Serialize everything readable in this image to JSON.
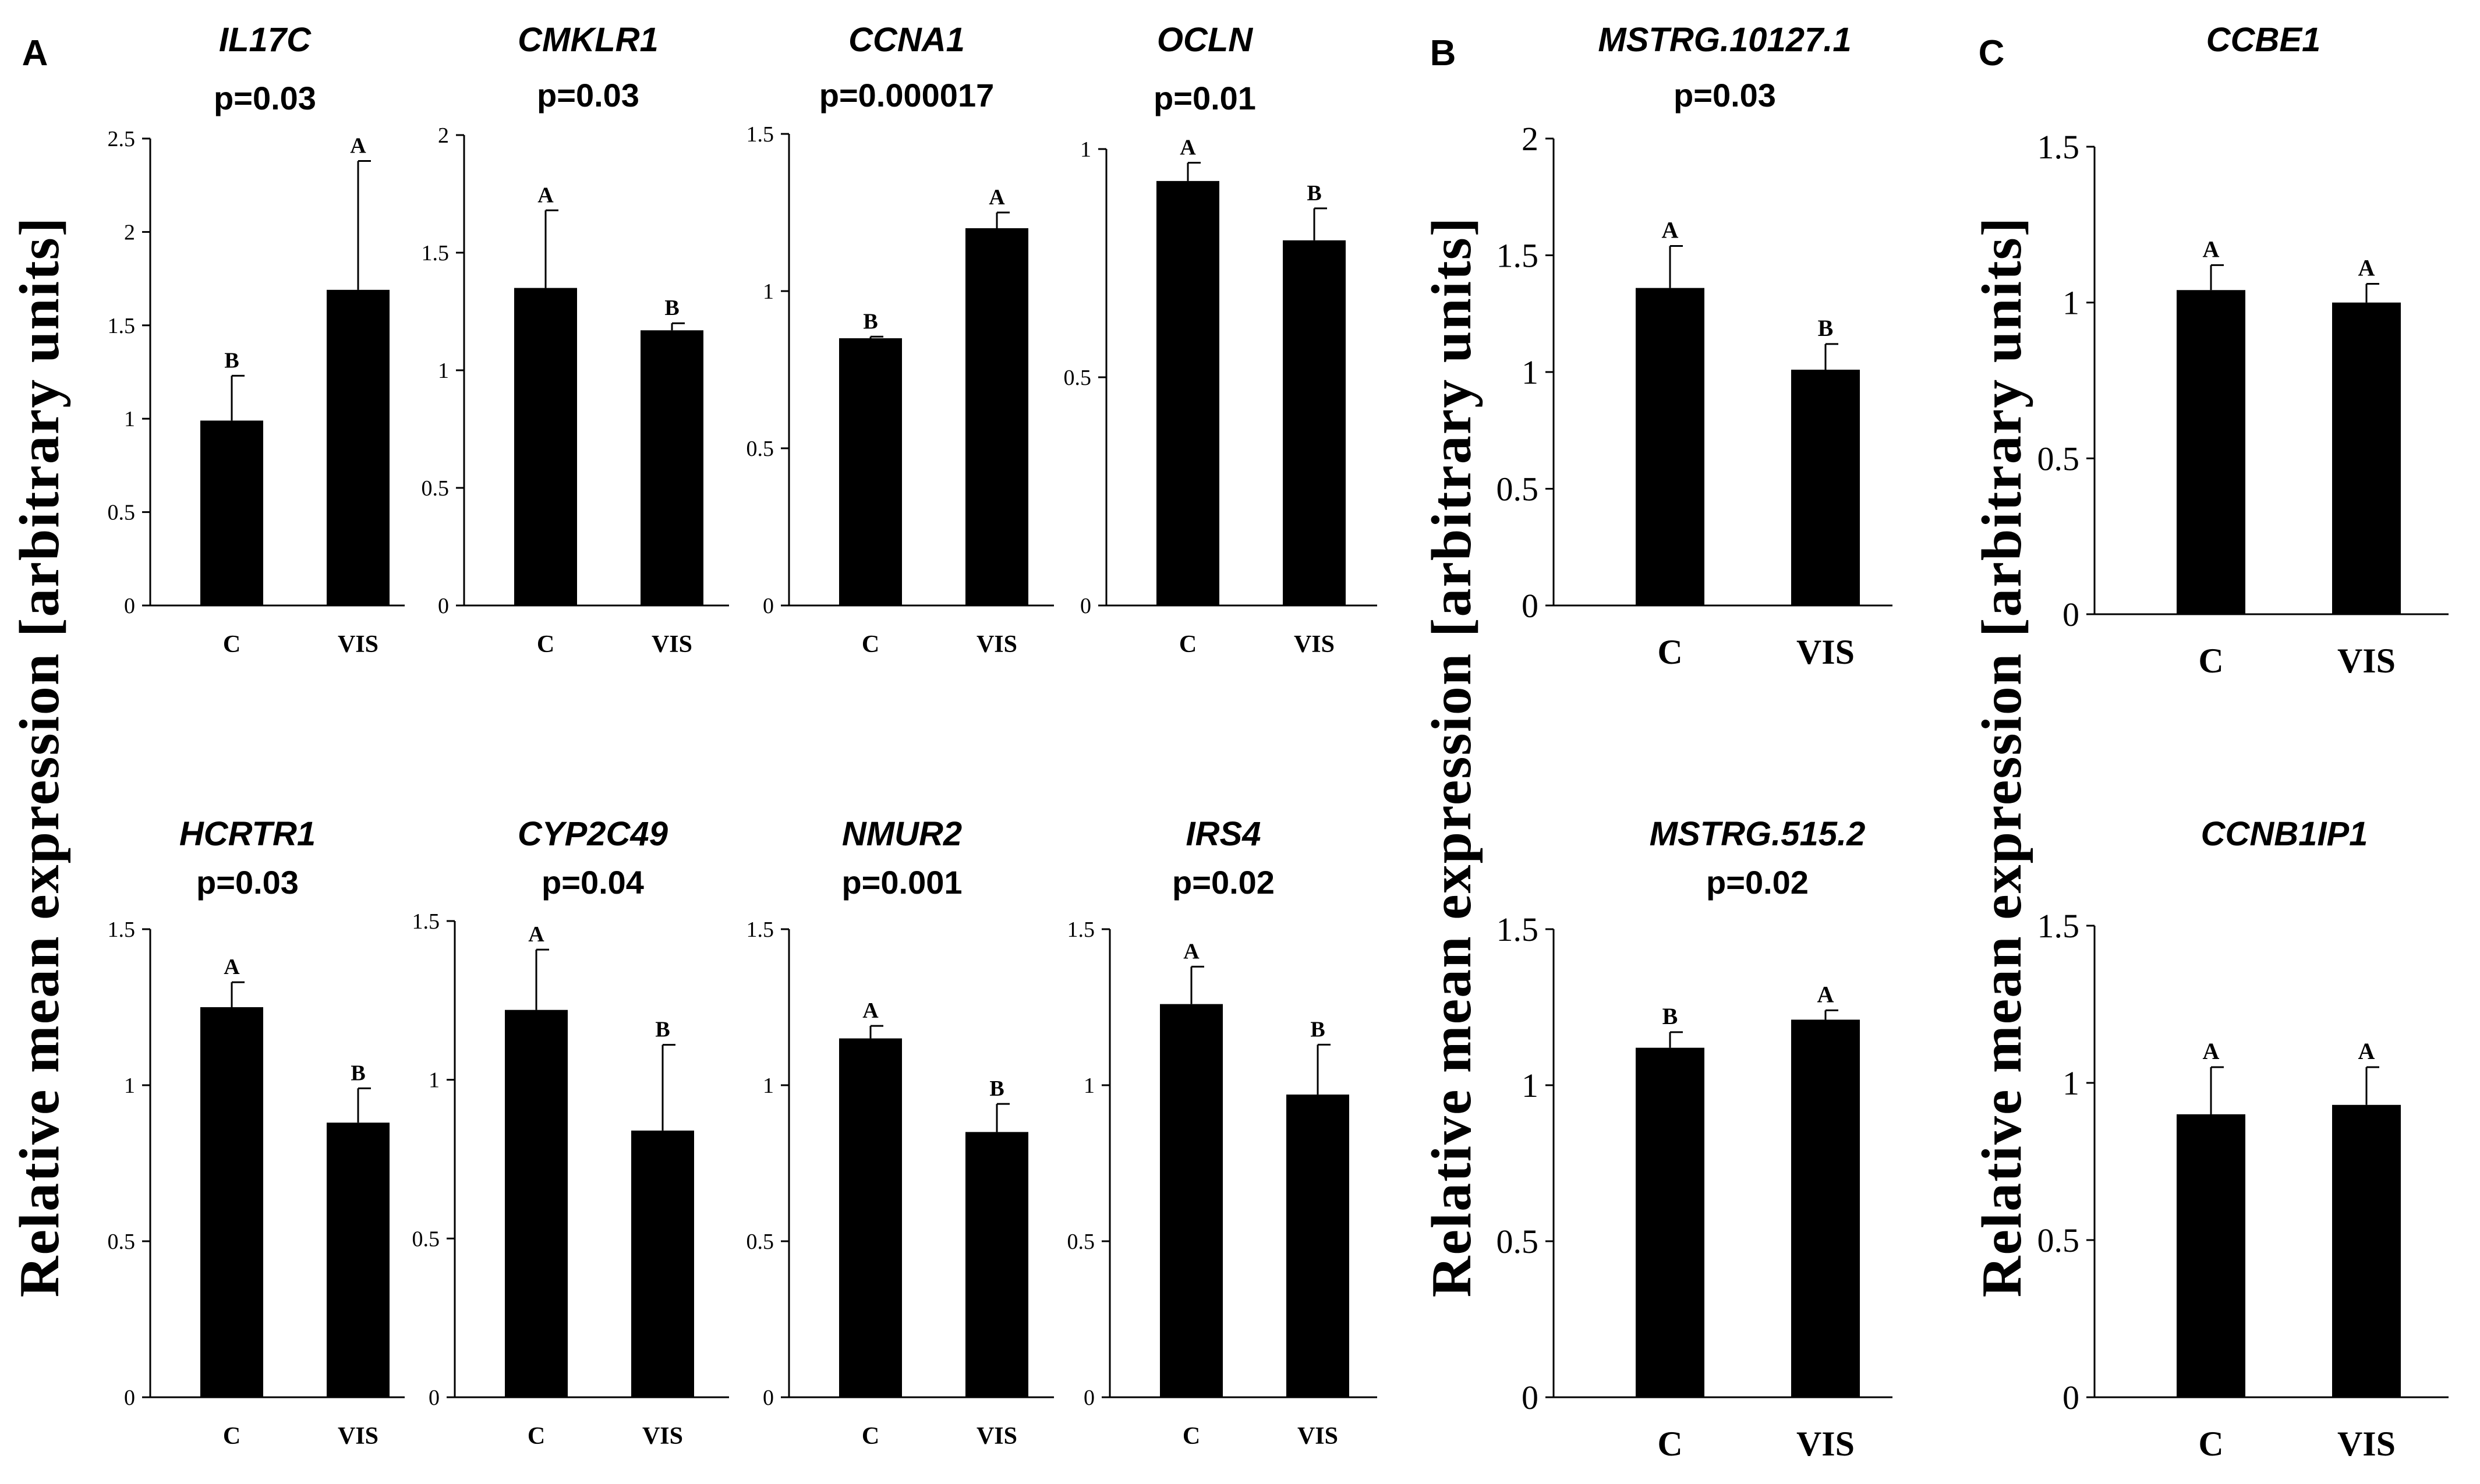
{
  "panels": [
    {
      "letter": "A",
      "ylabel": "Relative mean expression [arbitrary units]"
    },
    {
      "letter": "B",
      "ylabel": "Relative mean expression [arbitrary units]"
    },
    {
      "letter": "C",
      "ylabel": "Relative mean expression [arbitrary units]"
    }
  ],
  "chart_data": [
    {
      "type": "bar",
      "panel": "A",
      "title": "IL17C",
      "subtitle": "p=0.03",
      "categories": [
        "C",
        "VIS"
      ],
      "values": [
        0.99,
        1.69
      ],
      "errors": [
        0.24,
        0.69
      ],
      "letters": [
        "B",
        "A"
      ],
      "ylim": [
        0,
        2.5
      ],
      "yticks": [
        0,
        0.5,
        1,
        1.5,
        2,
        2.5
      ],
      "ytick_labels": [
        "0",
        "0.5",
        "1",
        "1.5",
        "2",
        "2.5"
      ]
    },
    {
      "type": "bar",
      "panel": "A",
      "title": "CMKLR1",
      "subtitle": "p=0.03",
      "categories": [
        "C",
        "VIS"
      ],
      "values": [
        1.35,
        1.17
      ],
      "errors": [
        0.33,
        0.03
      ],
      "letters": [
        "A",
        "B"
      ],
      "ylim": [
        0,
        2
      ],
      "yticks": [
        0,
        0.5,
        1,
        1.5,
        2
      ],
      "ytick_labels": [
        "0",
        "0.5",
        "1",
        "1.5",
        "2"
      ]
    },
    {
      "type": "bar",
      "panel": "A",
      "title": "CCNA1",
      "subtitle": "p=0.000017",
      "categories": [
        "C",
        "VIS"
      ],
      "values": [
        0.85,
        1.2
      ],
      "errors": [
        0.005,
        0.05
      ],
      "letters": [
        "B",
        "A"
      ],
      "ylim": [
        0,
        1.5
      ],
      "yticks": [
        0,
        0.5,
        1,
        1.5
      ],
      "ytick_labels": [
        "0",
        "0.5",
        "1",
        "1.5"
      ]
    },
    {
      "type": "bar",
      "panel": "A",
      "title": "OCLN",
      "subtitle": "p=0.01",
      "categories": [
        "C",
        "VIS"
      ],
      "values": [
        0.93,
        0.8
      ],
      "errors": [
        0.04,
        0.07
      ],
      "letters": [
        "A",
        "B"
      ],
      "ylim": [
        0,
        1
      ],
      "yticks": [
        0,
        0.5,
        1
      ],
      "ytick_labels": [
        "0",
        "0.5",
        "1"
      ]
    },
    {
      "type": "bar",
      "panel": "A",
      "title": "HCRTR1",
      "subtitle": "p=0.03",
      "categories": [
        "C",
        "VIS"
      ],
      "values": [
        1.25,
        0.88
      ],
      "errors": [
        0.08,
        0.11
      ],
      "letters": [
        "A",
        "B"
      ],
      "ylim": [
        0,
        1.5
      ],
      "yticks": [
        0,
        0.5,
        1,
        1.5
      ],
      "ytick_labels": [
        "0",
        "0.5",
        "1",
        "1.5"
      ]
    },
    {
      "type": "bar",
      "panel": "A",
      "title": "CYP2C49",
      "subtitle": "p=0.04",
      "categories": [
        "C",
        "VIS"
      ],
      "values": [
        1.22,
        0.84
      ],
      "errors": [
        0.19,
        0.27
      ],
      "letters": [
        "A",
        "B"
      ],
      "ylim": [
        0,
        1.5
      ],
      "yticks": [
        0,
        0.5,
        1,
        1.5
      ],
      "ytick_labels": [
        "0",
        "0.5",
        "1",
        "1.5"
      ]
    },
    {
      "type": "bar",
      "panel": "A",
      "title": "NMUR2",
      "subtitle": "p=0.001",
      "categories": [
        "C",
        "VIS"
      ],
      "values": [
        1.15,
        0.85
      ],
      "errors": [
        0.04,
        0.09
      ],
      "letters": [
        "A",
        "B"
      ],
      "ylim": [
        0,
        1.5
      ],
      "yticks": [
        0,
        0.5,
        1,
        1.5
      ],
      "ytick_labels": [
        "0",
        "0.5",
        "1",
        "1.5"
      ]
    },
    {
      "type": "bar",
      "panel": "A",
      "title": "IRS4",
      "subtitle": "p=0.02",
      "categories": [
        "C",
        "VIS"
      ],
      "values": [
        1.26,
        0.97
      ],
      "errors": [
        0.12,
        0.16
      ],
      "letters": [
        "A",
        "B"
      ],
      "ylim": [
        0,
        1.5
      ],
      "yticks": [
        0,
        0.5,
        1,
        1.5
      ],
      "ytick_labels": [
        "0",
        "0.5",
        "1",
        "1.5"
      ]
    },
    {
      "type": "bar",
      "panel": "B",
      "title": "MSTRG.10127.1",
      "subtitle": "p=0.03",
      "categories": [
        "C",
        "VIS"
      ],
      "values": [
        1.36,
        1.01
      ],
      "errors": [
        0.18,
        0.11
      ],
      "letters": [
        "A",
        "B"
      ],
      "ylim": [
        0,
        2
      ],
      "yticks": [
        0,
        0.5,
        1,
        1.5,
        2
      ],
      "ytick_labels": [
        "0",
        "0.5",
        "1",
        "1.5",
        "2"
      ]
    },
    {
      "type": "bar",
      "panel": "B",
      "title": "MSTRG.515.2",
      "subtitle": "p=0.02",
      "categories": [
        "C",
        "VIS"
      ],
      "values": [
        1.12,
        1.21
      ],
      "errors": [
        0.05,
        0.03
      ],
      "letters": [
        "B",
        "A"
      ],
      "ylim": [
        0,
        1.5
      ],
      "yticks": [
        0,
        0.5,
        1,
        1.5
      ],
      "ytick_labels": [
        "0",
        "0.5",
        "1",
        "1.5"
      ]
    },
    {
      "type": "bar",
      "panel": "C",
      "title": "CCBE1",
      "subtitle": "",
      "categories": [
        "C",
        "VIS"
      ],
      "values": [
        1.04,
        1.0
      ],
      "errors": [
        0.08,
        0.06
      ],
      "letters": [
        "A",
        "A"
      ],
      "ylim": [
        0,
        1.5
      ],
      "yticks": [
        0,
        0.5,
        1,
        1.5
      ],
      "ytick_labels": [
        "0",
        "0.5",
        "1",
        "1.5"
      ]
    },
    {
      "type": "bar",
      "panel": "C",
      "title": "CCNB1IP1",
      "subtitle": "",
      "categories": [
        "C",
        "VIS"
      ],
      "values": [
        0.9,
        0.93
      ],
      "errors": [
        0.15,
        0.12
      ],
      "letters": [
        "A",
        "A"
      ],
      "ylim": [
        0,
        1.5
      ],
      "yticks": [
        0,
        0.5,
        1,
        1.5
      ],
      "ytick_labels": [
        "0",
        "0.5",
        "1",
        "1.5"
      ]
    }
  ]
}
